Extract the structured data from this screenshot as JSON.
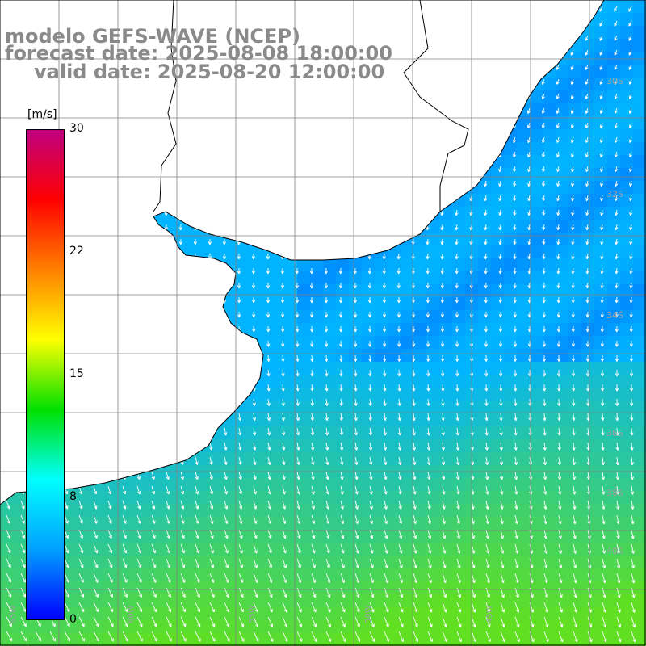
{
  "title": {
    "model": "modelo GEFS-WAVE (NCEP)",
    "forecast": "forecast date: 2025-08-08 18:00:00",
    "valid": "valid date: 2025-08-20 12:00:00"
  },
  "colorbar": {
    "units": "[m/s]",
    "min": 0,
    "max": 30,
    "ticks": [
      "30",
      "22",
      "15",
      "8",
      "0"
    ],
    "colors": [
      "#0000ff",
      "#00a0ff",
      "#00ffff",
      "#00e000",
      "#ffff00",
      "#ff8000",
      "#ff0000",
      "#c00080"
    ]
  },
  "map": {
    "field": "wind speed",
    "ocean_low_color": "#00b4ff",
    "ocean_high_color": "#60e020",
    "land_color": "#ffffff",
    "coast_color": "#000000",
    "grid_color": "#808080",
    "arrow_color": "#ffffff",
    "lat_labels": [
      "30S",
      "32S",
      "34S",
      "36S",
      "38S",
      "40S"
    ],
    "lon_labels": [
      "65W",
      "60W",
      "55W",
      "50W",
      "45W"
    ]
  }
}
